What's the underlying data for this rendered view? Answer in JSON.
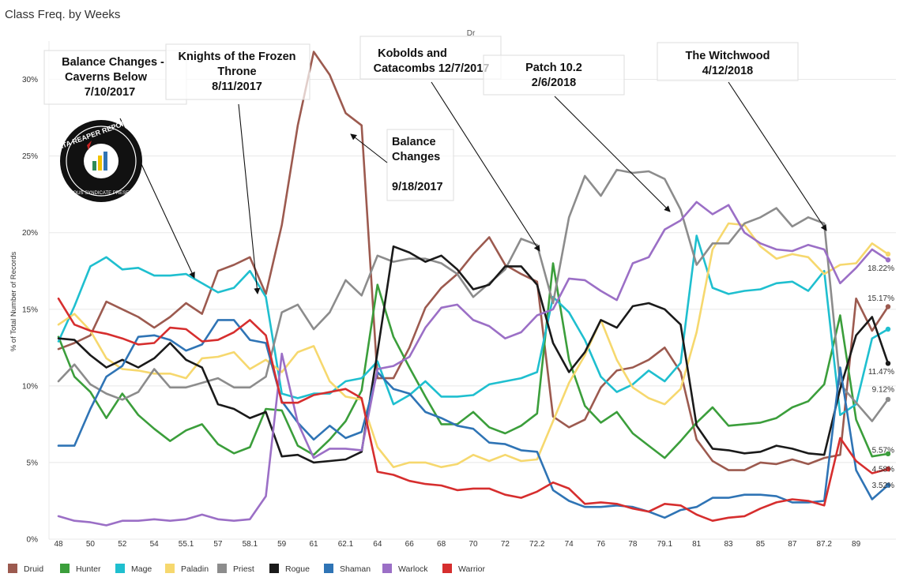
{
  "title": "Class Freq. by Weeks",
  "subtitle": "Dr",
  "logo_text": {
    "line1": "DATA REAPER REPORT",
    "line2": "VICIOUS SYNDICATE PRESENTS"
  },
  "annotations": [
    {
      "id": "ann-balance-cavens",
      "lines": [
        "Balance Changes -",
        "Caverns Below",
        "7/10/2017"
      ]
    },
    {
      "id": "ann-kft",
      "lines": [
        "Knights of the Frozen",
        "Throne",
        "8/11/2017"
      ]
    },
    {
      "id": "ann-kobolds",
      "lines": [
        "Kobolds and",
        "Catacombs 12/7/2017"
      ]
    },
    {
      "id": "ann-patch",
      "lines": [
        "Patch 10.2",
        "2/6/2018"
      ]
    },
    {
      "id": "ann-witchwood",
      "lines": [
        "The Witchwood",
        "4/12/2018"
      ]
    },
    {
      "id": "ann-balance-sep",
      "lines": [
        "Balance",
        "Changes",
        "9/18/2017"
      ]
    }
  ],
  "colors": {
    "Druid": "#9c5a4f",
    "Hunter": "#3b9e3b",
    "Mage": "#1fbfcf",
    "Paladin": "#f6d86e",
    "Priest": "#8c8c8c",
    "Rogue": "#1a1a1a",
    "Shaman": "#2f74b5",
    "Warlock": "#9b6fc6",
    "Warrior": "#d62e2e"
  },
  "chart_data": {
    "type": "line",
    "xlabel": "",
    "ylabel": "% of Total Number of Records",
    "ylim": [
      0,
      32.5
    ],
    "y_ticks": [
      "0%",
      "5%",
      "10%",
      "15%",
      "20%",
      "25%",
      "30%"
    ],
    "x_tick_labels": [
      "48",
      "50",
      "52",
      "54",
      "55.1",
      "57",
      "58.1",
      "59",
      "61",
      "62.1",
      "64",
      "66",
      "68",
      "70",
      "72",
      "72.2",
      "74",
      "76",
      "78",
      "79.1",
      "81",
      "83",
      "85",
      "87",
      "87.2",
      "89"
    ],
    "legend": [
      "Druid",
      "Hunter",
      "Mage",
      "Paladin",
      "Priest",
      "Rogue",
      "Shaman",
      "Warlock",
      "Warrior"
    ],
    "end_labels": [
      {
        "series": "Warlock",
        "text": "18.22%"
      },
      {
        "series": "Druid",
        "text": "15.17%"
      },
      {
        "series": "Rogue",
        "text": "11.47%"
      },
      {
        "series": "Priest",
        "text": "9.12%"
      },
      {
        "series": "Hunter",
        "text": "5.57%"
      },
      {
        "series": "Warrior",
        "text": "4.58%"
      },
      {
        "series": "Shaman",
        "text": "3.52%"
      }
    ],
    "series": [
      {
        "name": "Druid",
        "values": [
          12.4,
          12.8,
          13.3,
          15.5,
          15.0,
          14.5,
          13.8,
          14.5,
          15.4,
          14.7,
          17.5,
          17.9,
          18.4,
          16.0,
          20.5,
          27.0,
          31.8,
          30.3,
          27.8,
          27.0,
          10.5,
          10.5,
          12.5,
          15.1,
          16.4,
          17.3,
          18.6,
          19.7,
          17.9,
          17.3,
          16.8,
          8.0,
          7.3,
          7.8,
          9.9,
          11.0,
          11.2,
          11.7,
          12.5,
          10.9,
          6.5,
          5.1,
          4.5,
          4.5,
          5.0,
          4.9,
          5.2,
          4.9,
          5.3,
          5.5,
          15.7,
          13.6,
          15.17
        ]
      },
      {
        "name": "Hunter",
        "values": [
          13.2,
          10.6,
          9.6,
          7.9,
          9.5,
          8.1,
          7.2,
          6.4,
          7.1,
          7.5,
          6.2,
          5.6,
          6.0,
          8.5,
          8.4,
          6.1,
          5.5,
          6.5,
          7.7,
          9.7,
          16.6,
          13.2,
          11.2,
          9.3,
          7.5,
          7.5,
          8.3,
          7.3,
          6.9,
          7.4,
          8.2,
          18.0,
          11.7,
          8.7,
          7.6,
          8.3,
          6.9,
          6.1,
          5.3,
          6.4,
          7.6,
          8.6,
          7.4,
          7.5,
          7.6,
          7.9,
          8.6,
          9.0,
          10.1,
          14.6,
          7.8,
          5.4,
          5.57
        ]
      },
      {
        "name": "Mage",
        "values": [
          12.9,
          15.2,
          17.8,
          18.4,
          17.6,
          17.7,
          17.2,
          17.2,
          17.3,
          16.7,
          16.1,
          16.4,
          17.5,
          15.8,
          9.5,
          9.2,
          9.5,
          9.5,
          10.3,
          10.5,
          11.6,
          8.8,
          9.4,
          10.3,
          9.3,
          9.3,
          9.4,
          10.1,
          10.3,
          10.5,
          10.9,
          15.8,
          14.8,
          13.0,
          10.6,
          9.6,
          10.1,
          11.0,
          10.3,
          11.5,
          19.8,
          16.4,
          16.0,
          16.2,
          16.3,
          16.7,
          16.8,
          16.2,
          17.5,
          8.1,
          8.8,
          13.1,
          13.7
        ]
      },
      {
        "name": "Paladin",
        "values": [
          14.0,
          14.7,
          13.6,
          11.8,
          11.1,
          11.0,
          10.8,
          10.8,
          10.5,
          11.8,
          11.9,
          12.2,
          11.1,
          11.7,
          10.9,
          12.2,
          12.6,
          10.3,
          9.3,
          9.1,
          6.0,
          4.7,
          5.0,
          5.0,
          4.7,
          4.9,
          5.5,
          5.1,
          5.5,
          5.1,
          5.2,
          7.7,
          10.2,
          12.0,
          14.3,
          11.7,
          9.9,
          9.2,
          8.8,
          9.8,
          13.5,
          18.9,
          20.6,
          20.5,
          19.1,
          18.3,
          18.6,
          18.4,
          17.3,
          17.9,
          18.0,
          19.3,
          18.6
        ]
      },
      {
        "name": "Priest",
        "values": [
          10.3,
          11.4,
          10.1,
          9.5,
          9.1,
          9.6,
          11.1,
          9.9,
          9.9,
          10.2,
          10.5,
          9.9,
          9.9,
          10.6,
          14.8,
          15.3,
          13.7,
          14.8,
          16.9,
          15.9,
          18.5,
          18.1,
          18.3,
          18.3,
          18.0,
          17.3,
          15.8,
          16.7,
          17.6,
          19.6,
          19.2,
          15.4,
          21.0,
          23.7,
          22.4,
          24.1,
          23.9,
          24.0,
          23.5,
          21.5,
          17.9,
          19.3,
          19.3,
          20.6,
          21.0,
          21.6,
          20.4,
          21.0,
          20.6,
          10.1,
          8.9,
          7.7,
          9.12
        ]
      },
      {
        "name": "Rogue",
        "values": [
          13.1,
          13.0,
          12.0,
          11.2,
          11.7,
          11.2,
          11.8,
          12.8,
          11.7,
          11.2,
          8.8,
          8.5,
          7.9,
          8.3,
          5.4,
          5.5,
          5.0,
          5.1,
          5.2,
          5.7,
          12.2,
          19.1,
          18.7,
          18.1,
          18.5,
          17.6,
          16.3,
          16.6,
          17.8,
          17.8,
          16.6,
          12.8,
          10.9,
          12.2,
          14.3,
          13.8,
          15.2,
          15.4,
          15.0,
          14.0,
          7.4,
          5.9,
          5.8,
          5.6,
          5.7,
          6.1,
          5.9,
          5.6,
          5.5,
          9.8,
          13.3,
          14.5,
          11.47
        ]
      },
      {
        "name": "Shaman",
        "values": [
          6.1,
          6.1,
          8.5,
          10.6,
          11.3,
          13.2,
          13.3,
          13.0,
          12.3,
          12.7,
          14.3,
          14.3,
          13.0,
          12.8,
          9.0,
          7.6,
          6.5,
          7.4,
          6.6,
          7.0,
          10.9,
          9.8,
          9.5,
          8.3,
          7.9,
          7.4,
          7.2,
          6.3,
          6.2,
          5.8,
          5.7,
          3.2,
          2.5,
          2.1,
          2.1,
          2.2,
          2.1,
          1.8,
          1.4,
          1.9,
          2.1,
          2.7,
          2.7,
          2.9,
          2.9,
          2.8,
          2.4,
          2.4,
          2.5,
          11.2,
          4.5,
          2.6,
          3.52
        ]
      },
      {
        "name": "Warlock",
        "values": [
          1.5,
          1.2,
          1.1,
          0.9,
          1.2,
          1.2,
          1.3,
          1.2,
          1.3,
          1.6,
          1.3,
          1.2,
          1.3,
          2.8,
          12.1,
          7.6,
          5.3,
          5.9,
          5.9,
          5.8,
          11.1,
          11.3,
          11.9,
          13.8,
          15.1,
          15.3,
          14.3,
          13.9,
          13.1,
          13.5,
          14.6,
          15.0,
          17.0,
          16.9,
          16.2,
          15.6,
          18.0,
          18.4,
          20.2,
          20.8,
          22.0,
          21.2,
          21.8,
          20.0,
          19.3,
          18.9,
          18.8,
          19.2,
          18.9,
          16.7,
          17.7,
          18.9,
          18.22
        ]
      },
      {
        "name": "Warrior",
        "values": [
          15.7,
          14.0,
          13.6,
          13.4,
          13.1,
          12.7,
          12.8,
          13.8,
          13.7,
          12.9,
          13.0,
          13.5,
          14.3,
          13.3,
          8.9,
          8.9,
          9.4,
          9.6,
          9.8,
          9.2,
          4.4,
          4.2,
          3.8,
          3.6,
          3.5,
          3.2,
          3.3,
          3.3,
          2.9,
          2.7,
          3.1,
          3.7,
          3.3,
          2.3,
          2.4,
          2.3,
          2.0,
          1.8,
          2.3,
          2.2,
          1.6,
          1.2,
          1.4,
          1.5,
          2.0,
          2.4,
          2.6,
          2.5,
          2.2,
          6.6,
          5.1,
          4.3,
          4.58
        ]
      }
    ]
  }
}
